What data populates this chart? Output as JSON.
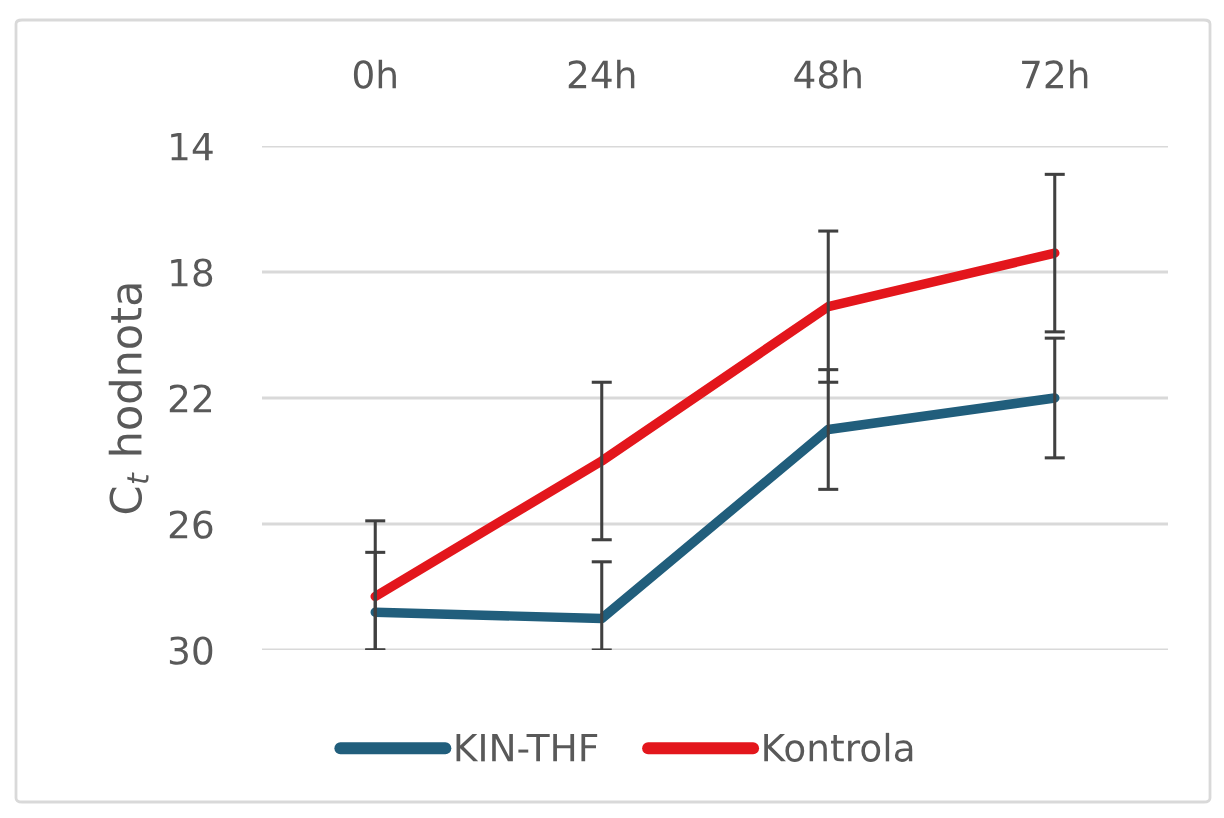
{
  "chart_data": {
    "type": "line",
    "ylabel": "C$_{t}$ hodnota",
    "categories": [
      "0h",
      "24h",
      "48h",
      "72h"
    ],
    "series": [
      {
        "name": "KIN-THF",
        "color": "#215e7c",
        "values": [
          28.8,
          29.0,
          23.0,
          22.0
        ],
        "errors": [
          [
            26.9,
            30
          ],
          [
            27.2,
            30
          ],
          1.9,
          1.9
        ]
      },
      {
        "name": "Kontrola",
        "color": "#e3161c",
        "values": [
          28.3,
          24.0,
          19.1,
          17.4
        ],
        "errors": [
          [
            25.9,
            30
          ],
          2.5,
          2.4,
          2.5
        ]
      }
    ],
    "ylim": [
      30,
      14
    ],
    "yticks": [
      14,
      18,
      22,
      26,
      30
    ],
    "grid": "y",
    "legend": "bottom",
    "marker": "none",
    "line_style": "solid"
  }
}
